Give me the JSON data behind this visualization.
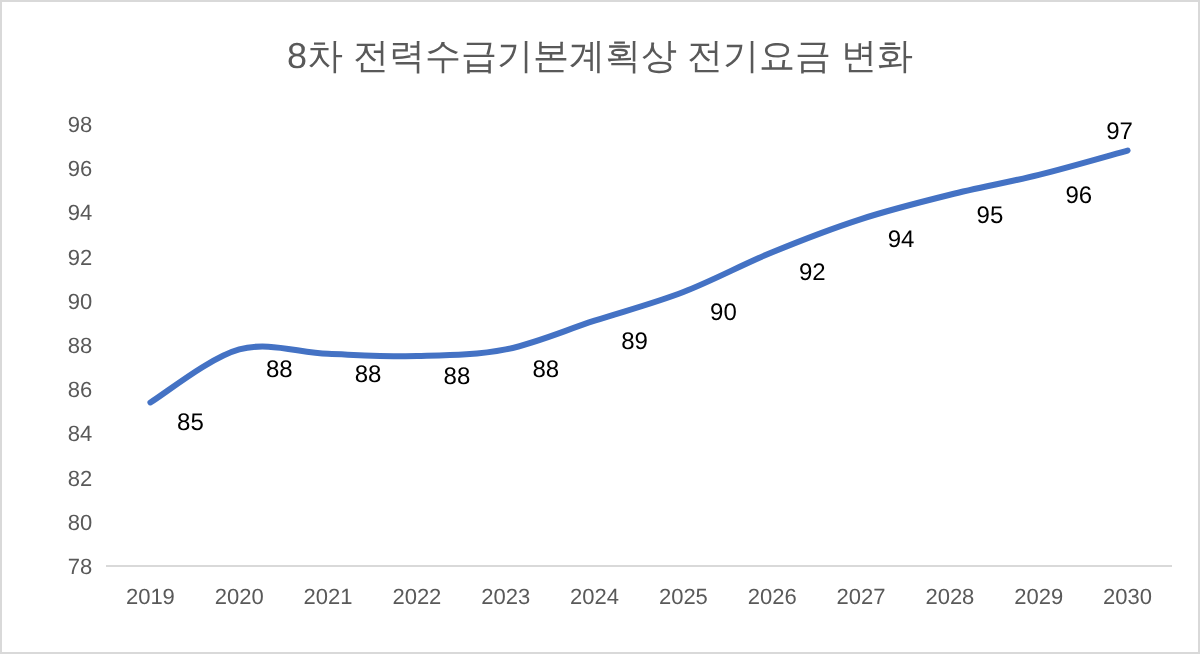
{
  "chart_data": {
    "type": "line",
    "title": "8차 전력수급기본계획상 전기요금 변화",
    "categories": [
      "2019",
      "2020",
      "2021",
      "2022",
      "2023",
      "2024",
      "2025",
      "2026",
      "2027",
      "2028",
      "2029",
      "2030"
    ],
    "series": [
      {
        "color": "#4472c4",
        "values": [
          85.4,
          87.8,
          87.6,
          87.5,
          87.8,
          89.1,
          90.4,
          92.2,
          93.7,
          94.8,
          95.7,
          96.8
        ],
        "value_labels": [
          "85",
          "88",
          "88",
          "88",
          "88",
          "89",
          "90",
          "92",
          "94",
          "95",
          "96",
          "97"
        ]
      }
    ],
    "ylim": [
      78,
      98
    ],
    "yticks": [
      78,
      80,
      82,
      84,
      86,
      88,
      90,
      92,
      94,
      96,
      98
    ],
    "grid": false
  }
}
